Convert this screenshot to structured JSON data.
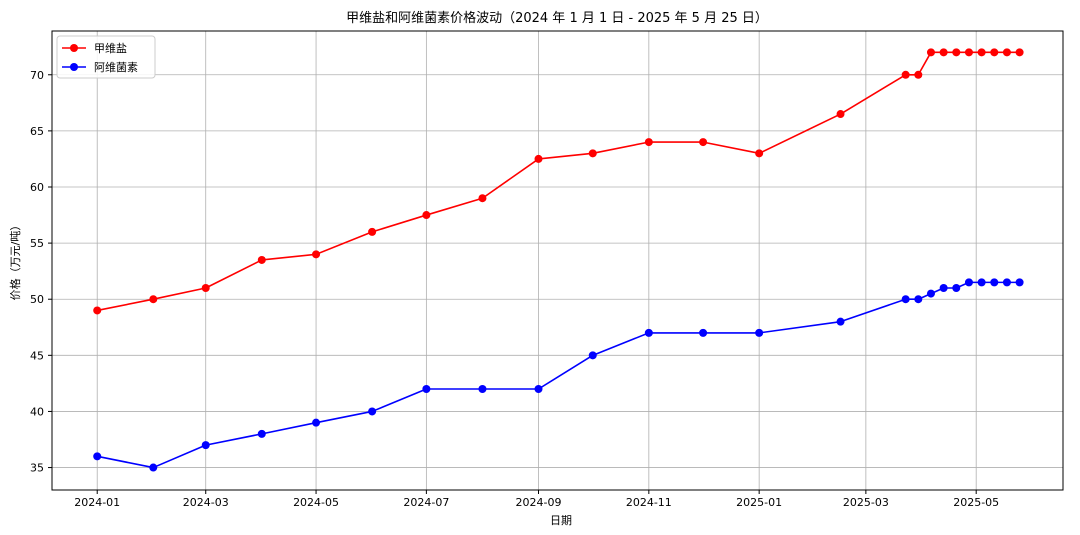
{
  "chart_data": {
    "type": "line",
    "title": "甲维盐和阿维菌素价格波动（2024 年 1 月 1 日 - 2025 年 5 月 25 日）",
    "xlabel": "日期",
    "ylabel": "价格（万元/吨）",
    "x_tick_labels": [
      "2024-01",
      "2024-03",
      "2024-05",
      "2024-07",
      "2024-09",
      "2024-11",
      "2025-01",
      "2025-03",
      "2025-05"
    ],
    "x_tick_dates": [
      "2024-01-01",
      "2024-03-01",
      "2024-05-01",
      "2024-07-01",
      "2024-09-01",
      "2024-11-01",
      "2025-01-01",
      "2025-03-01",
      "2025-05-01"
    ],
    "y_ticks": [
      35,
      40,
      45,
      50,
      55,
      60,
      65,
      70
    ],
    "xlim": [
      "2023-12-07",
      "2025-06-18"
    ],
    "ylim": [
      33.0,
      73.9
    ],
    "grid": true,
    "legend_position": "top-left",
    "series": [
      {
        "name": "甲维盐",
        "color": "#ff0000",
        "points": [
          [
            "2024-01-01",
            49
          ],
          [
            "2024-02-01",
            50
          ],
          [
            "2024-03-01",
            51
          ],
          [
            "2024-04-01",
            53.5
          ],
          [
            "2024-05-01",
            54
          ],
          [
            "2024-06-01",
            56
          ],
          [
            "2024-07-01",
            57.5
          ],
          [
            "2024-08-01",
            59
          ],
          [
            "2024-09-01",
            62.5
          ],
          [
            "2024-10-01",
            63
          ],
          [
            "2024-11-01",
            64
          ],
          [
            "2024-12-01",
            64
          ],
          [
            "2025-01-01",
            63
          ],
          [
            "2025-02-15",
            66.5
          ],
          [
            "2025-03-23",
            70
          ],
          [
            "2025-03-30",
            70
          ],
          [
            "2025-04-06",
            72
          ],
          [
            "2025-04-13",
            72
          ],
          [
            "2025-04-20",
            72
          ],
          [
            "2025-04-27",
            72
          ],
          [
            "2025-05-04",
            72
          ],
          [
            "2025-05-11",
            72
          ],
          [
            "2025-05-18",
            72
          ],
          [
            "2025-05-25",
            72
          ]
        ]
      },
      {
        "name": "阿维菌素",
        "color": "#0000ff",
        "points": [
          [
            "2024-01-01",
            36
          ],
          [
            "2024-02-01",
            35
          ],
          [
            "2024-03-01",
            37
          ],
          [
            "2024-04-01",
            38
          ],
          [
            "2024-05-01",
            39
          ],
          [
            "2024-06-01",
            40
          ],
          [
            "2024-07-01",
            42
          ],
          [
            "2024-08-01",
            42
          ],
          [
            "2024-09-01",
            42
          ],
          [
            "2024-10-01",
            45
          ],
          [
            "2024-11-01",
            47
          ],
          [
            "2024-12-01",
            47
          ],
          [
            "2025-01-01",
            47
          ],
          [
            "2025-02-15",
            48
          ],
          [
            "2025-03-23",
            50
          ],
          [
            "2025-03-30",
            50
          ],
          [
            "2025-04-06",
            50.5
          ],
          [
            "2025-04-13",
            51
          ],
          [
            "2025-04-20",
            51
          ],
          [
            "2025-04-27",
            51.5
          ],
          [
            "2025-05-04",
            51.5
          ],
          [
            "2025-05-11",
            51.5
          ],
          [
            "2025-05-18",
            51.5
          ],
          [
            "2025-05-25",
            51.5
          ]
        ]
      }
    ]
  }
}
